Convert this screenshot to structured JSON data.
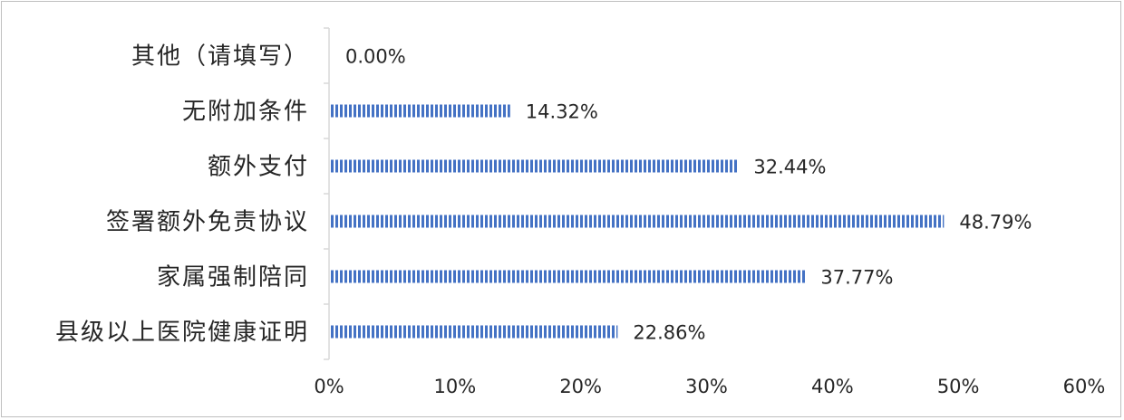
{
  "chart_data": {
    "type": "bar",
    "orientation": "horizontal",
    "categories": [
      "其他（请填写）",
      "无附加条件",
      "额外支付",
      "签署额外免责协议",
      "家属强制陪同",
      "县级以上医院健康证明"
    ],
    "values": [
      0.0,
      14.32,
      32.44,
      48.79,
      37.77,
      22.86
    ],
    "value_labels": [
      "0.00%",
      "14.32%",
      "32.44%",
      "48.79%",
      "37.77%",
      "22.86%"
    ],
    "xlim": [
      0,
      60
    ],
    "x_ticks": [
      0,
      10,
      20,
      30,
      40,
      50,
      60
    ],
    "x_tick_labels": [
      "0%",
      "10%",
      "20%",
      "30%",
      "40%",
      "50%",
      "60%"
    ],
    "title": "",
    "xlabel": "",
    "ylabel": "",
    "grid": false,
    "legend": "none",
    "bar_color": "#4472C4",
    "bar_pattern": "vertical-stripes"
  }
}
